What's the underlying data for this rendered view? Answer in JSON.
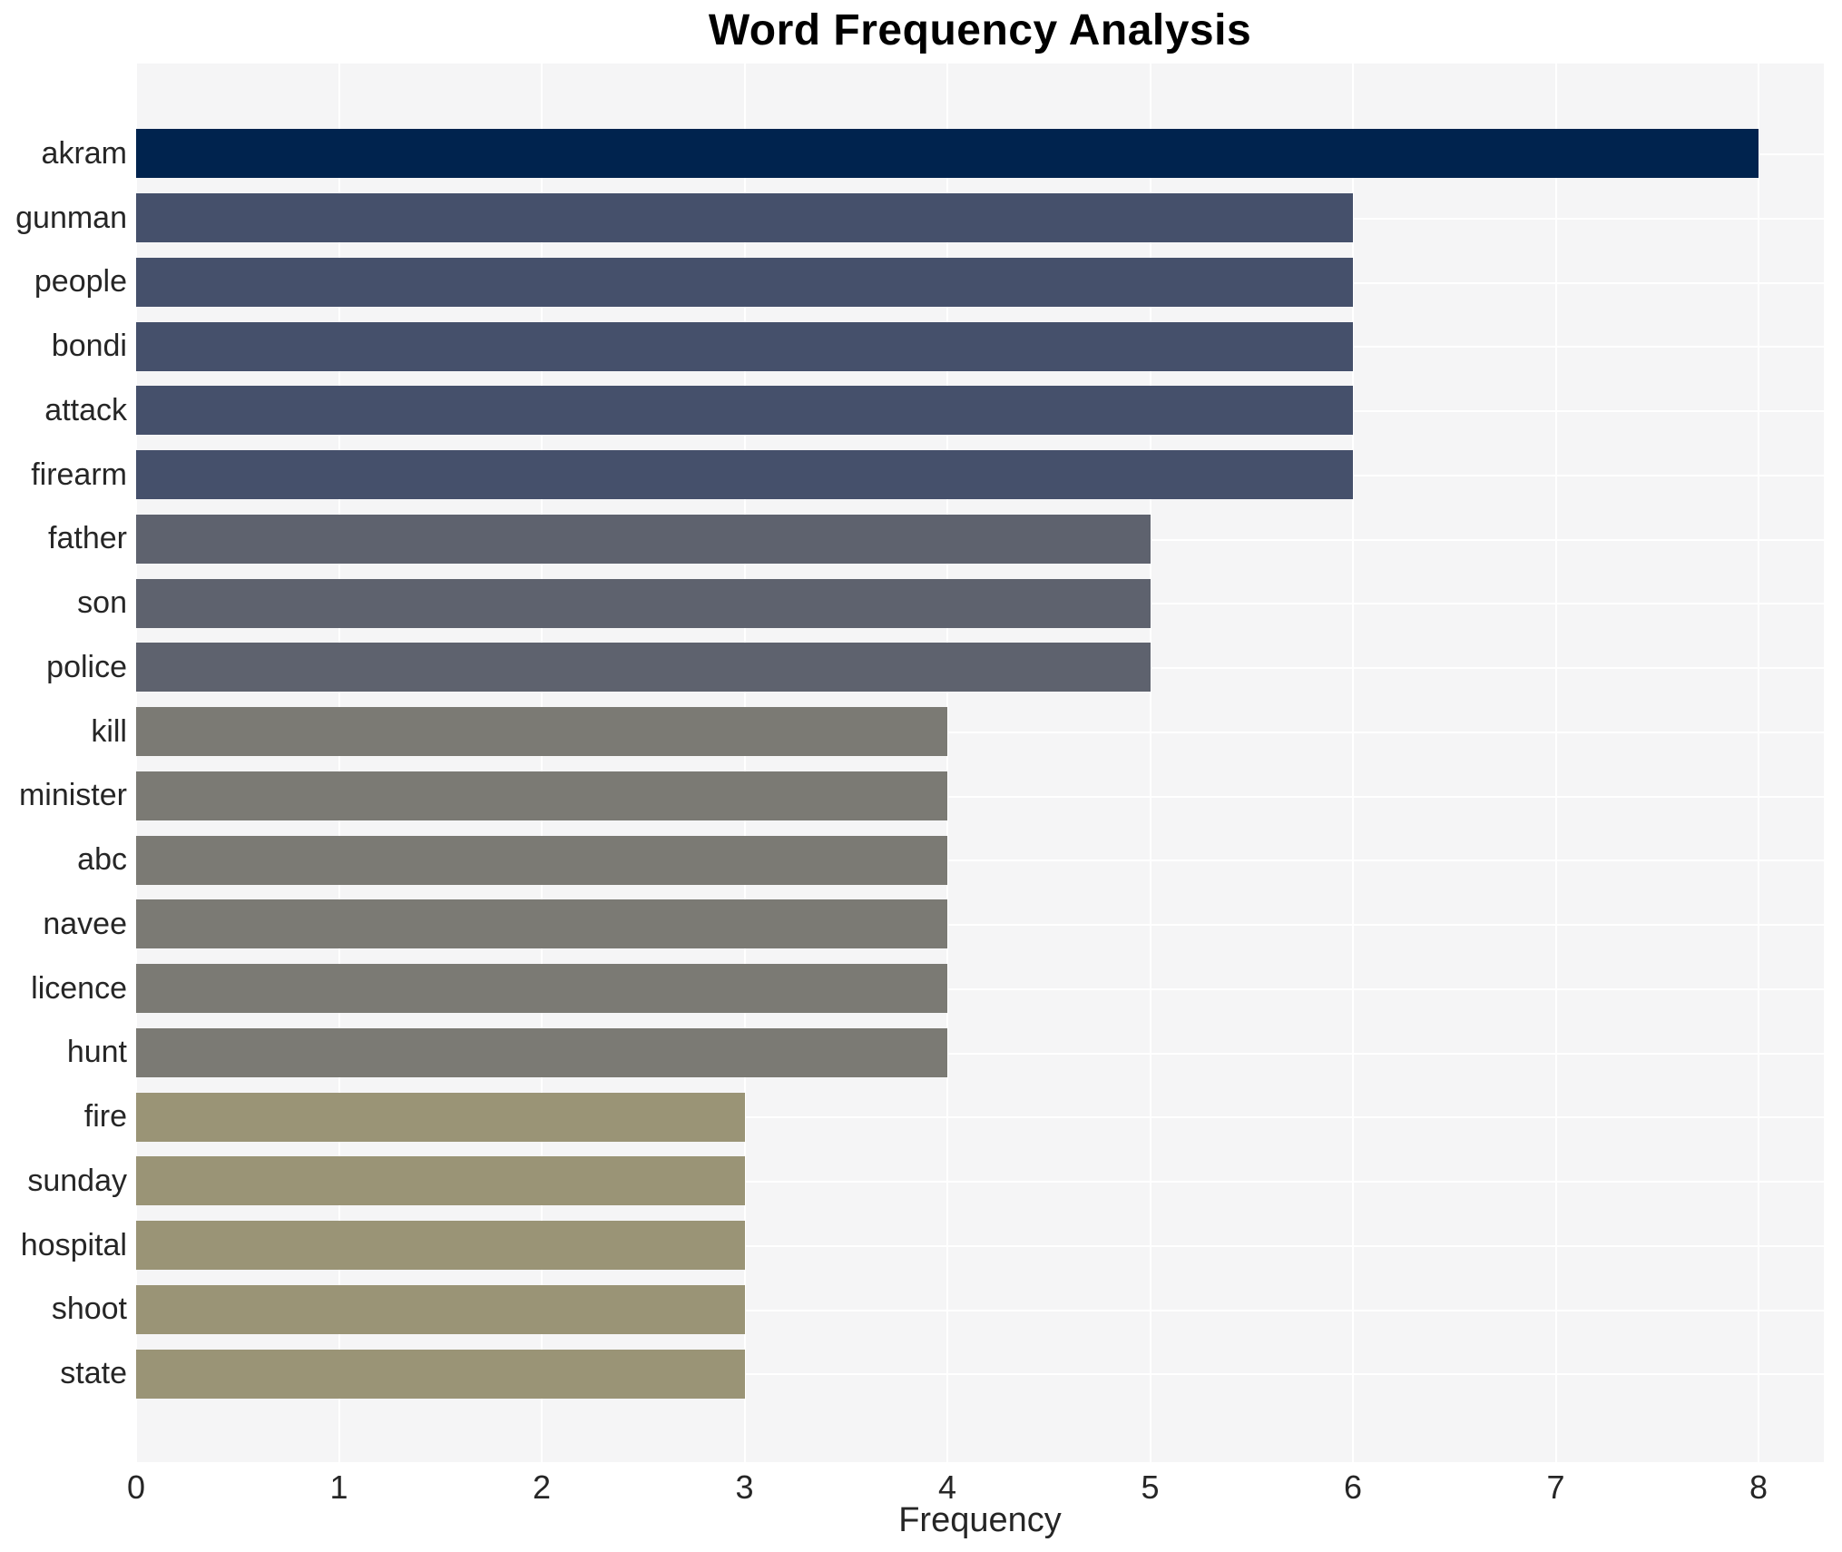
{
  "figure": {
    "title": "Word Frequency Analysis",
    "xlabel": "Frequency"
  },
  "chart_data": {
    "type": "bar",
    "orientation": "horizontal",
    "title": "Word Frequency Analysis",
    "xlabel": "Frequency",
    "ylabel": "",
    "xlim": [
      0,
      8
    ],
    "xticks": [
      0,
      1,
      2,
      3,
      4,
      5,
      6,
      7,
      8
    ],
    "grid": true,
    "legend": false,
    "plot_background_color": "#f5f5f6",
    "gridline_color": "#ffffff",
    "text_color": "#262626",
    "title_color": "#000000",
    "categories": [
      "akram",
      "gunman",
      "people",
      "bondi",
      "attack",
      "firearm",
      "father",
      "son",
      "police",
      "kill",
      "minister",
      "abc",
      "navee",
      "licence",
      "hunt",
      "fire",
      "sunday",
      "hospital",
      "shoot",
      "state"
    ],
    "values": [
      8,
      6,
      6,
      6,
      6,
      6,
      5,
      5,
      5,
      4,
      4,
      4,
      4,
      4,
      4,
      3,
      3,
      3,
      3,
      3
    ],
    "colors": [
      "#00234e",
      "#45506b",
      "#45506b",
      "#45506b",
      "#45506b",
      "#45506b",
      "#5e626e",
      "#5e626e",
      "#5e626e",
      "#7b7a74",
      "#7b7a74",
      "#7b7a74",
      "#7b7a74",
      "#7b7a74",
      "#7b7a74",
      "#9a9476",
      "#9a9476",
      "#9a9476",
      "#9a9476",
      "#9a9476"
    ],
    "color_by_value": {
      "8": "#00234e",
      "6": "#45506b",
      "5": "#5e626e",
      "4": "#7b7a74",
      "3": "#9a9476"
    }
  }
}
